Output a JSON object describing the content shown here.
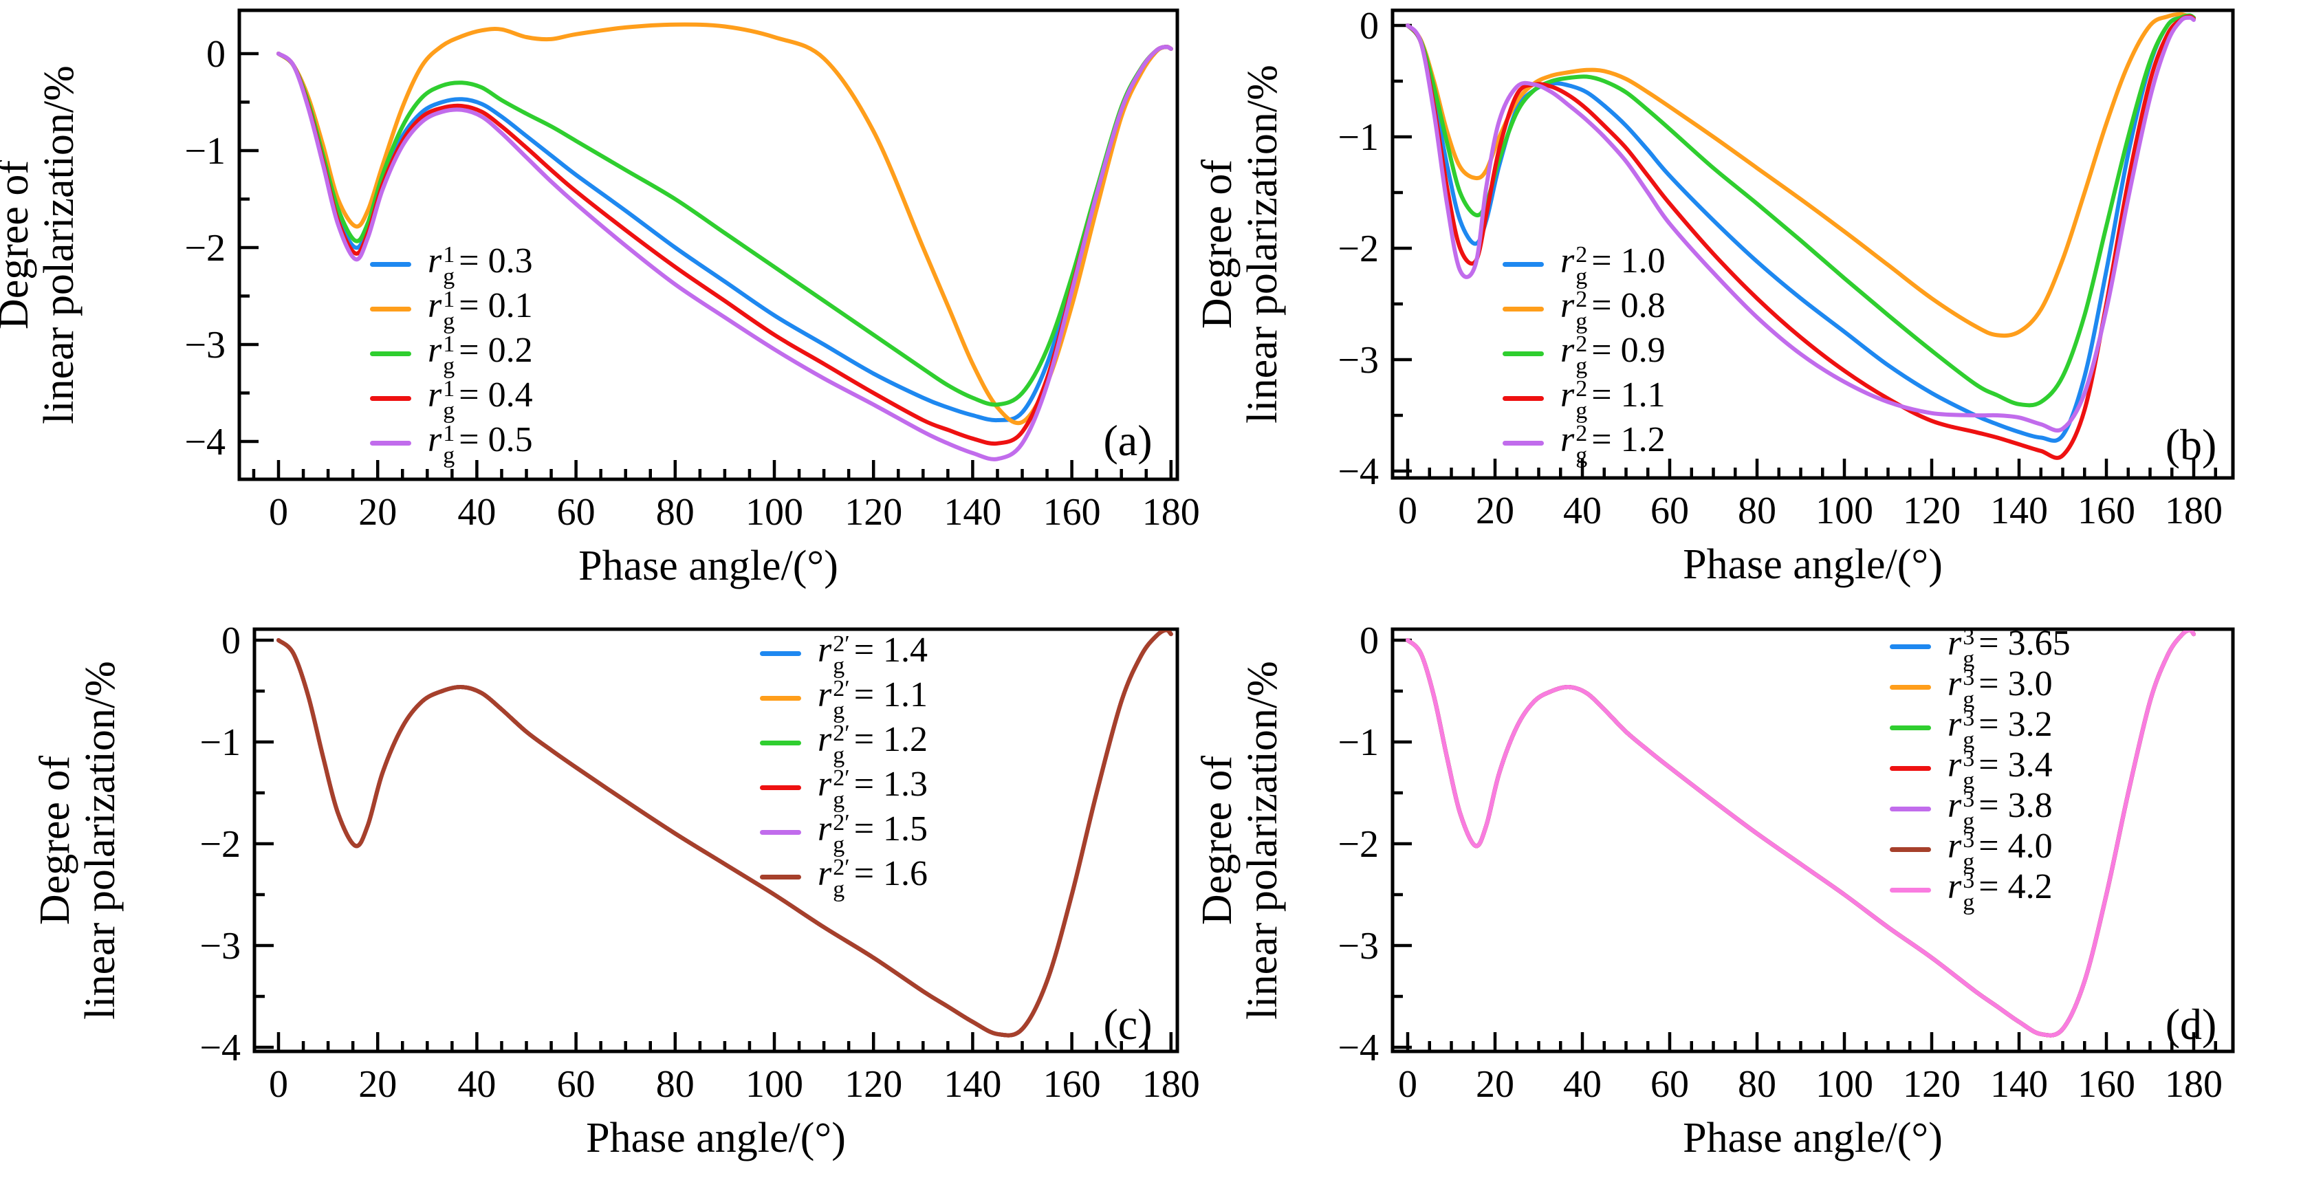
{
  "figure": {
    "background": "#ffffff",
    "xlabel": "Phase angle/(°)",
    "ylabel_lines": [
      "Degree of",
      "linear polarization/%"
    ],
    "x_major_ticks": [
      0,
      20,
      40,
      60,
      80,
      100,
      120,
      140,
      160,
      180
    ],
    "y_major_ticks": [
      0,
      -1,
      -2,
      -3,
      -4
    ],
    "x_minor_step": 5,
    "y_minor_step": 0.5,
    "axis_color": "#000000"
  },
  "chart_data": [
    {
      "type": "line",
      "key": "a",
      "panel_label": "(a)",
      "xlabel": "Phase angle/(°)",
      "ylabel": "Degree of linear polarization/%",
      "param": {
        "letter": "r",
        "sub": "g",
        "sup": "1"
      },
      "xlim": [
        -7.9,
        181.3
      ],
      "ylim": [
        -4.39,
        0.45
      ],
      "grid": false,
      "legend_position": "lower-left-inside",
      "x": [
        0,
        3,
        6,
        9,
        12,
        15.5,
        18,
        21,
        25,
        29,
        33,
        37,
        41,
        45,
        50,
        55,
        60,
        70,
        80,
        90,
        100,
        110,
        120,
        130,
        135,
        140,
        145,
        150,
        155,
        160,
        165,
        170,
        174,
        177,
        179,
        180
      ],
      "series": [
        {
          "value": "0.3",
          "color": "#1e88f0",
          "y": [
            0,
            -0.12,
            -0.52,
            -1.1,
            -1.68,
            -2.0,
            -1.8,
            -1.3,
            -0.85,
            -0.6,
            -0.5,
            -0.47,
            -0.52,
            -0.65,
            -0.85,
            -1.05,
            -1.25,
            -1.62,
            -2.0,
            -2.35,
            -2.7,
            -3.0,
            -3.3,
            -3.55,
            -3.65,
            -3.73,
            -3.78,
            -3.7,
            -3.2,
            -2.35,
            -1.42,
            -0.57,
            -0.16,
            0.03,
            0.07,
            0.05
          ]
        },
        {
          "value": "0.1",
          "color": "#ff9e1b",
          "y": [
            0,
            -0.12,
            -0.45,
            -0.95,
            -1.5,
            -1.78,
            -1.62,
            -1.15,
            -0.55,
            -0.12,
            0.08,
            0.18,
            0.24,
            0.25,
            0.17,
            0.15,
            0.2,
            0.27,
            0.3,
            0.28,
            0.17,
            -0.05,
            -0.8,
            -2.0,
            -2.6,
            -3.2,
            -3.65,
            -3.8,
            -3.4,
            -2.6,
            -1.6,
            -0.65,
            -0.2,
            0.02,
            0.07,
            0.05
          ]
        },
        {
          "value": "0.2",
          "color": "#2fce2f",
          "y": [
            0,
            -0.12,
            -0.5,
            -1.05,
            -1.6,
            -1.93,
            -1.75,
            -1.25,
            -0.75,
            -0.45,
            -0.33,
            -0.3,
            -0.35,
            -0.48,
            -0.62,
            -0.75,
            -0.9,
            -1.2,
            -1.5,
            -1.85,
            -2.2,
            -2.55,
            -2.9,
            -3.25,
            -3.42,
            -3.55,
            -3.62,
            -3.5,
            -3.05,
            -2.3,
            -1.4,
            -0.55,
            -0.15,
            0.03,
            0.07,
            0.05
          ]
        },
        {
          "value": "0.4",
          "color": "#ee1111",
          "y": [
            0,
            -0.12,
            -0.54,
            -1.12,
            -1.72,
            -2.06,
            -1.85,
            -1.35,
            -0.9,
            -0.65,
            -0.56,
            -0.54,
            -0.6,
            -0.75,
            -0.97,
            -1.2,
            -1.42,
            -1.82,
            -2.2,
            -2.55,
            -2.9,
            -3.2,
            -3.5,
            -3.78,
            -3.88,
            -3.97,
            -4.02,
            -3.9,
            -3.35,
            -2.42,
            -1.45,
            -0.58,
            -0.16,
            0.03,
            0.07,
            0.05
          ]
        },
        {
          "value": "0.5",
          "color": "#c16cec",
          "y": [
            0,
            -0.12,
            -0.56,
            -1.15,
            -1.76,
            -2.12,
            -1.9,
            -1.4,
            -0.95,
            -0.7,
            -0.6,
            -0.58,
            -0.65,
            -0.82,
            -1.07,
            -1.32,
            -1.55,
            -1.98,
            -2.38,
            -2.72,
            -3.05,
            -3.35,
            -3.62,
            -3.9,
            -4.02,
            -4.12,
            -4.18,
            -4.02,
            -3.42,
            -2.45,
            -1.45,
            -0.58,
            -0.16,
            0.03,
            0.07,
            0.05
          ]
        }
      ]
    },
    {
      "type": "line",
      "key": "b",
      "panel_label": "(b)",
      "xlabel": "Phase angle/(°)",
      "ylabel": "Degree of linear polarization/%",
      "param": {
        "letter": "r",
        "sub": "g",
        "sup": "2"
      },
      "xlim": [
        -3.5,
        189
      ],
      "ylim": [
        -4.06,
        0.14
      ],
      "grid": false,
      "legend_position": "lower-left-inside",
      "x": [
        0,
        3,
        6,
        9,
        12,
        15.5,
        18,
        21,
        25,
        29,
        33,
        37,
        41,
        45,
        50,
        55,
        60,
        70,
        80,
        90,
        100,
        110,
        120,
        130,
        135,
        140,
        145,
        150,
        155,
        160,
        165,
        170,
        174,
        177,
        179,
        180
      ],
      "series": [
        {
          "value": "1.0",
          "color": "#1e88f0",
          "y": [
            0,
            -0.15,
            -0.65,
            -1.25,
            -1.75,
            -1.96,
            -1.75,
            -1.25,
            -0.75,
            -0.58,
            -0.52,
            -0.54,
            -0.6,
            -0.72,
            -0.9,
            -1.12,
            -1.35,
            -1.75,
            -2.12,
            -2.45,
            -2.75,
            -3.05,
            -3.3,
            -3.5,
            -3.58,
            -3.65,
            -3.7,
            -3.68,
            -3.15,
            -2.2,
            -1.15,
            -0.35,
            0.0,
            0.07,
            0.09,
            0.07
          ]
        },
        {
          "value": "0.8",
          "color": "#ff9e1b",
          "y": [
            0,
            -0.13,
            -0.5,
            -0.95,
            -1.27,
            -1.37,
            -1.3,
            -1.0,
            -0.68,
            -0.52,
            -0.45,
            -0.42,
            -0.4,
            -0.41,
            -0.48,
            -0.6,
            -0.73,
            -1.0,
            -1.28,
            -1.56,
            -1.85,
            -2.15,
            -2.45,
            -2.7,
            -2.78,
            -2.75,
            -2.55,
            -2.1,
            -1.5,
            -0.88,
            -0.35,
            0.0,
            0.08,
            0.1,
            0.08,
            0.06
          ]
        },
        {
          "value": "0.9",
          "color": "#2fce2f",
          "y": [
            0,
            -0.14,
            -0.55,
            -1.05,
            -1.5,
            -1.7,
            -1.6,
            -1.2,
            -0.78,
            -0.58,
            -0.5,
            -0.47,
            -0.46,
            -0.5,
            -0.6,
            -0.76,
            -0.93,
            -1.28,
            -1.6,
            -1.93,
            -2.27,
            -2.6,
            -2.92,
            -3.22,
            -3.32,
            -3.4,
            -3.38,
            -3.15,
            -2.6,
            -1.8,
            -1.0,
            -0.32,
            0.0,
            0.07,
            0.09,
            0.07
          ]
        },
        {
          "value": "1.1",
          "color": "#ee1111",
          "y": [
            0,
            -0.15,
            -0.72,
            -1.45,
            -2.0,
            -2.12,
            -1.7,
            -1.1,
            -0.62,
            -0.53,
            -0.55,
            -0.63,
            -0.75,
            -0.9,
            -1.1,
            -1.35,
            -1.6,
            -2.05,
            -2.45,
            -2.8,
            -3.1,
            -3.35,
            -3.55,
            -3.65,
            -3.7,
            -3.76,
            -3.82,
            -3.86,
            -3.45,
            -2.5,
            -1.4,
            -0.5,
            -0.08,
            0.05,
            0.08,
            0.06
          ]
        },
        {
          "value": "1.2",
          "color": "#c16cec",
          "y": [
            0,
            -0.15,
            -0.78,
            -1.6,
            -2.2,
            -2.15,
            -1.45,
            -0.85,
            -0.55,
            -0.53,
            -0.6,
            -0.72,
            -0.85,
            -1.0,
            -1.22,
            -1.5,
            -1.78,
            -2.22,
            -2.62,
            -2.95,
            -3.2,
            -3.38,
            -3.48,
            -3.5,
            -3.5,
            -3.52,
            -3.58,
            -3.62,
            -3.3,
            -2.55,
            -1.55,
            -0.65,
            -0.15,
            0.04,
            0.07,
            0.05
          ]
        }
      ]
    },
    {
      "type": "line",
      "key": "c",
      "panel_label": "(c)",
      "xlabel": "Phase angle/(°)",
      "ylabel": "Degree of linear polarization/%",
      "param": {
        "letter": "r",
        "sub": "g",
        "sup": "2′"
      },
      "xlim": [
        -4.8,
        181.3
      ],
      "ylim": [
        -4.04,
        0.11
      ],
      "grid": false,
      "legend_position": "upper-right-inside",
      "note": "all six curves coincide",
      "x": [
        0,
        3,
        6,
        9,
        12,
        15.5,
        18,
        21,
        25,
        29,
        33,
        37,
        41,
        45,
        50,
        55,
        60,
        70,
        80,
        90,
        100,
        110,
        120,
        130,
        135,
        140,
        145,
        150,
        155,
        160,
        165,
        170,
        174,
        177,
        179,
        180
      ],
      "shared_values": [
        0,
        -0.13,
        -0.55,
        -1.15,
        -1.7,
        -2.02,
        -1.82,
        -1.3,
        -0.85,
        -0.6,
        -0.5,
        -0.46,
        -0.52,
        -0.68,
        -0.9,
        -1.08,
        -1.25,
        -1.58,
        -1.9,
        -2.2,
        -2.5,
        -2.82,
        -3.12,
        -3.45,
        -3.6,
        -3.75,
        -3.87,
        -3.82,
        -3.35,
        -2.5,
        -1.5,
        -0.6,
        -0.15,
        0.04,
        0.1,
        0.06
      ],
      "series": [
        {
          "value": "1.4",
          "color": "#1e88f0",
          "y": "shared"
        },
        {
          "value": "1.1",
          "color": "#ff9e1b",
          "y": "shared"
        },
        {
          "value": "1.2",
          "color": "#2fce2f",
          "y": "shared"
        },
        {
          "value": "1.3",
          "color": "#ee1111",
          "y": "shared"
        },
        {
          "value": "1.5",
          "color": "#c16cec",
          "y": "shared"
        },
        {
          "value": "1.6",
          "color": "#a6402b",
          "y": "shared"
        }
      ]
    },
    {
      "type": "line",
      "key": "d",
      "panel_label": "(d)",
      "xlabel": "Phase angle/(°)",
      "ylabel": "Degree of linear polarization/%",
      "param": {
        "letter": "r",
        "sub": "g",
        "sup": "3"
      },
      "xlim": [
        -3.5,
        189
      ],
      "ylim": [
        -4.04,
        0.11
      ],
      "grid": false,
      "legend_position": "upper-right-inside",
      "note": "all seven curves coincide",
      "x": [
        0,
        3,
        6,
        9,
        12,
        15.5,
        18,
        21,
        25,
        29,
        33,
        37,
        41,
        45,
        50,
        55,
        60,
        70,
        80,
        90,
        100,
        110,
        120,
        130,
        135,
        140,
        145,
        150,
        155,
        160,
        165,
        170,
        174,
        177,
        179,
        180
      ],
      "shared_values": [
        0,
        -0.13,
        -0.55,
        -1.15,
        -1.7,
        -2.02,
        -1.82,
        -1.3,
        -0.85,
        -0.6,
        -0.5,
        -0.46,
        -0.52,
        -0.68,
        -0.9,
        -1.08,
        -1.25,
        -1.58,
        -1.9,
        -2.2,
        -2.5,
        -2.82,
        -3.12,
        -3.45,
        -3.6,
        -3.75,
        -3.87,
        -3.82,
        -3.35,
        -2.5,
        -1.5,
        -0.6,
        -0.15,
        0.04,
        0.1,
        0.06
      ],
      "series": [
        {
          "value": "3.65",
          "color": "#1e88f0",
          "y": "shared"
        },
        {
          "value": "3.0",
          "color": "#ff9e1b",
          "y": "shared"
        },
        {
          "value": "3.2",
          "color": "#2fce2f",
          "y": "shared"
        },
        {
          "value": "3.4",
          "color": "#ee1111",
          "y": "shared"
        },
        {
          "value": "3.8",
          "color": "#c16cec",
          "y": "shared"
        },
        {
          "value": "4.0",
          "color": "#a6402b",
          "y": "shared"
        },
        {
          "value": "4.2",
          "color": "#f97ce0",
          "y": "shared"
        }
      ]
    }
  ]
}
